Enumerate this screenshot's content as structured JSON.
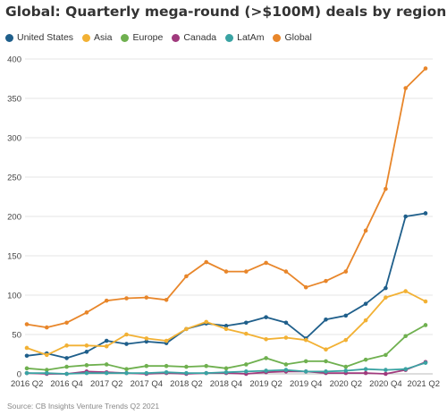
{
  "chart_data": {
    "type": "line",
    "title": "Global: Quarterly mega-round (>$100M) deals by region",
    "x": [
      "2016 Q2",
      "2016 Q3",
      "2016 Q4",
      "2017 Q1",
      "2017 Q2",
      "2017 Q3",
      "2017 Q4",
      "2018 Q1",
      "2018 Q2",
      "2018 Q3",
      "2018 Q4",
      "2019 Q1",
      "2019 Q2",
      "2019 Q3",
      "2019 Q4",
      "2020 Q1",
      "2020 Q2",
      "2020 Q3",
      "2020 Q4",
      "2021 Q1",
      "2021 Q2"
    ],
    "x_tick_labels": [
      "2016 Q2",
      "2016 Q4",
      "2017 Q2",
      "2017 Q4",
      "2018 Q2",
      "2018 Q4",
      "2019 Q2",
      "2019 Q4",
      "2020 Q2",
      "2020 Q4",
      "2021 Q2"
    ],
    "ylim": [
      0,
      400
    ],
    "y_ticks": [
      0,
      50,
      100,
      150,
      200,
      250,
      300,
      350,
      400
    ],
    "grid": true,
    "legend_position": "top",
    "series": [
      {
        "name": "United States",
        "color": "#1f5f8b",
        "values": [
          23,
          26,
          20,
          28,
          42,
          38,
          41,
          39,
          57,
          64,
          61,
          65,
          72,
          65,
          45,
          69,
          74,
          89,
          109,
          200,
          204
        ]
      },
      {
        "name": "Asia",
        "color": "#f2b134",
        "values": [
          33,
          24,
          36,
          36,
          35,
          50,
          45,
          42,
          57,
          66,
          57,
          51,
          44,
          46,
          43,
          31,
          43,
          68,
          97,
          105,
          92
        ]
      },
      {
        "name": "Europe",
        "color": "#6fb04f",
        "values": [
          7,
          5,
          9,
          11,
          12,
          6,
          10,
          10,
          9,
          10,
          7,
          12,
          20,
          12,
          16,
          16,
          9,
          18,
          24,
          48,
          62
        ]
      },
      {
        "name": "Canada",
        "color": "#a03a7d",
        "values": [
          1,
          0,
          0,
          3,
          2,
          1,
          0,
          1,
          0,
          1,
          1,
          0,
          2,
          3,
          3,
          1,
          1,
          1,
          0,
          5,
          15
        ]
      },
      {
        "name": "LatAm",
        "color": "#3aa3a3",
        "values": [
          1,
          1,
          0,
          1,
          1,
          1,
          1,
          2,
          1,
          1,
          2,
          3,
          4,
          5,
          3,
          3,
          4,
          6,
          5,
          6,
          14
        ]
      },
      {
        "name": "Global",
        "color": "#e8862a",
        "values": [
          63,
          59,
          65,
          78,
          93,
          96,
          97,
          94,
          124,
          142,
          130,
          130,
          141,
          130,
          110,
          118,
          130,
          182,
          235,
          363,
          388
        ]
      }
    ]
  },
  "source": "Source: CB Insights Venture Trends Q2 2021"
}
